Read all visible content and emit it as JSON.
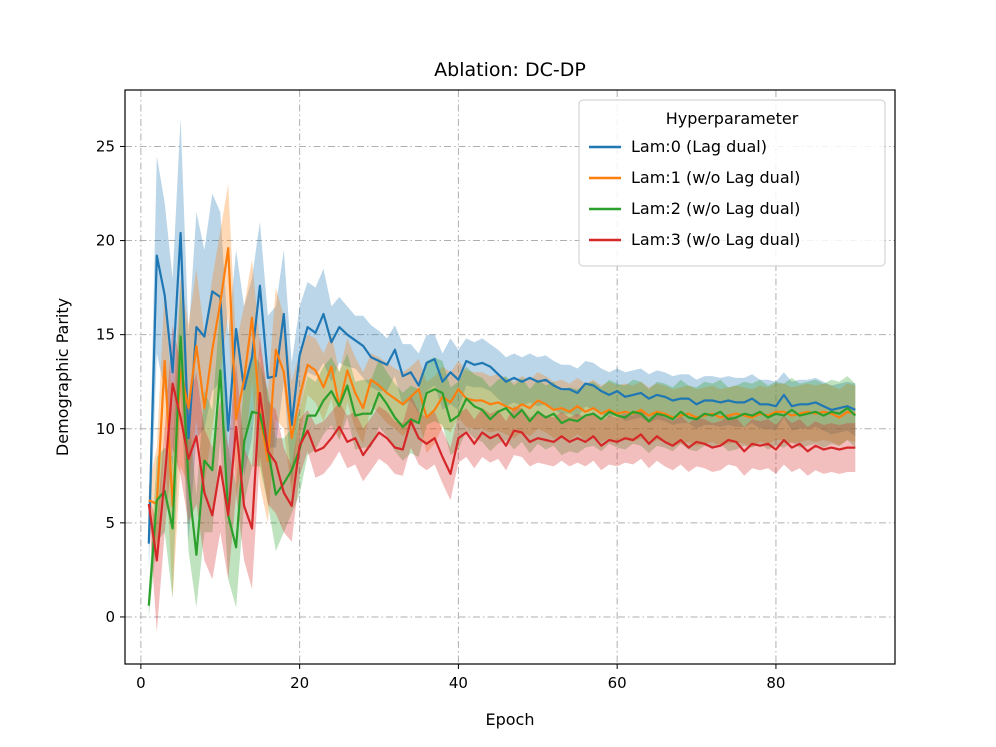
{
  "chart_data": {
    "type": "line",
    "title": "Ablation: DC-DP",
    "xlabel": "Epoch",
    "ylabel": "Demographic Parity",
    "xlim": [
      -2,
      95
    ],
    "ylim": [
      -2.5,
      28
    ],
    "xticks": [
      0,
      20,
      40,
      60,
      80
    ],
    "yticks": [
      0,
      5,
      10,
      15,
      20,
      25
    ],
    "grid": true,
    "legend": {
      "title": "Hyperparameter",
      "placement": "top-right",
      "entries": [
        "Lam:0 (Lag dual)",
        "Lam:1 (w/o Lag dual)",
        "Lam:2 (w/o Lag dual)",
        "Lam:3 (w/o Lag dual)"
      ]
    },
    "x": [
      1,
      2,
      3,
      4,
      5,
      6,
      7,
      8,
      9,
      10,
      11,
      12,
      13,
      14,
      15,
      16,
      17,
      18,
      19,
      20,
      21,
      22,
      23,
      24,
      25,
      26,
      27,
      28,
      29,
      30,
      31,
      32,
      33,
      34,
      35,
      36,
      37,
      38,
      39,
      40,
      41,
      42,
      43,
      44,
      45,
      46,
      47,
      48,
      49,
      50,
      51,
      52,
      53,
      54,
      55,
      56,
      57,
      58,
      59,
      60,
      61,
      62,
      63,
      64,
      65,
      66,
      67,
      68,
      69,
      70,
      71,
      72,
      73,
      74,
      75,
      76,
      77,
      78,
      79,
      80,
      81,
      82,
      83,
      84,
      85,
      86,
      87,
      88,
      89,
      90
    ],
    "series": [
      {
        "name": "Lam:0 (Lag dual)",
        "color": "#1f77b4",
        "values": [
          3.9,
          19.2,
          17.1,
          13.0,
          20.4,
          9.5,
          15.4,
          14.9,
          17.3,
          17.0,
          9.9,
          15.3,
          12.1,
          13.8,
          17.6,
          12.7,
          12.8,
          16.1,
          10.2,
          13.9,
          15.4,
          15.1,
          16.1,
          14.6,
          15.4,
          15.0,
          14.7,
          14.4,
          13.8,
          13.6,
          13.4,
          14.2,
          12.8,
          13.0,
          12.3,
          13.5,
          13.7,
          12.5,
          13.0,
          12.6,
          13.6,
          13.4,
          13.5,
          13.3,
          12.9,
          12.5,
          12.7,
          12.5,
          12.7,
          12.5,
          12.6,
          12.3,
          12.1,
          12.1,
          11.9,
          12.4,
          12.3,
          12.0,
          11.8,
          12.0,
          11.7,
          11.8,
          11.9,
          11.6,
          11.8,
          11.7,
          11.5,
          11.6,
          11.6,
          11.3,
          11.5,
          11.5,
          11.4,
          11.5,
          11.4,
          11.4,
          11.6,
          11.3,
          11.3,
          11.2,
          11.8,
          11.2,
          11.3,
          11.3,
          11.4,
          11.2,
          11.0,
          11.1,
          11.2,
          11.0
        ],
        "upper": [
          5.5,
          24.5,
          22.0,
          18.0,
          26.5,
          15.0,
          21.5,
          19.5,
          22.5,
          21.5,
          15.0,
          19.5,
          16.5,
          18.0,
          21.0,
          16.0,
          16.5,
          19.5,
          13.5,
          16.5,
          17.8,
          17.5,
          18.5,
          16.5,
          17.0,
          16.5,
          16.0,
          16.0,
          15.5,
          15.2,
          14.8,
          15.5,
          14.5,
          14.5,
          14.0,
          15.0,
          15.0,
          14.0,
          14.8,
          14.2,
          14.8,
          14.6,
          14.8,
          14.5,
          14.2,
          13.8,
          14.0,
          13.8,
          14.0,
          13.8,
          13.9,
          13.6,
          13.4,
          13.4,
          13.2,
          13.6,
          13.5,
          13.2,
          13.0,
          13.2,
          13.0,
          13.1,
          13.2,
          12.9,
          13.1,
          13.0,
          12.8,
          12.9,
          12.9,
          12.6,
          12.8,
          12.8,
          12.7,
          12.8,
          12.7,
          12.7,
          12.9,
          12.6,
          12.6,
          12.5,
          13.0,
          12.5,
          12.6,
          12.6,
          12.7,
          12.5,
          12.3,
          12.4,
          12.5,
          12.4
        ],
        "lower": [
          2.5,
          14.0,
          12.0,
          8.0,
          14.5,
          4.0,
          9.5,
          10.0,
          12.0,
          12.5,
          5.0,
          11.0,
          7.5,
          9.5,
          14.0,
          9.0,
          9.0,
          12.5,
          7.0,
          11.0,
          13.0,
          12.8,
          13.5,
          12.5,
          13.5,
          13.3,
          13.2,
          12.7,
          12.2,
          12.0,
          12.0,
          12.8,
          11.2,
          11.5,
          10.8,
          12.0,
          12.3,
          11.0,
          11.3,
          11.0,
          12.3,
          12.2,
          12.2,
          12.0,
          11.6,
          11.2,
          11.4,
          11.2,
          11.4,
          11.2,
          11.3,
          11.0,
          10.8,
          10.8,
          10.6,
          11.2,
          11.0,
          10.8,
          10.6,
          10.8,
          10.4,
          10.5,
          10.6,
          10.3,
          10.5,
          10.4,
          10.2,
          10.3,
          10.3,
          10.0,
          10.2,
          10.2,
          10.1,
          10.2,
          10.1,
          10.1,
          10.3,
          10.0,
          10.0,
          9.9,
          10.6,
          9.9,
          10.0,
          10.0,
          10.1,
          9.9,
          9.7,
          9.8,
          9.9,
          9.6
        ]
      },
      {
        "name": "Lam:1 (w/o Lag dual)",
        "color": "#ff7f0e",
        "values": [
          6.2,
          6.0,
          13.6,
          5.9,
          13.1,
          11.1,
          14.4,
          11.1,
          14.2,
          16.7,
          19.6,
          10.5,
          12.6,
          15.9,
          10.7,
          8.3,
          14.2,
          13.0,
          9.5,
          11.7,
          13.4,
          13.1,
          12.2,
          13.3,
          11.2,
          13.1,
          11.9,
          11.1,
          12.6,
          12.3,
          11.9,
          11.6,
          11.3,
          11.7,
          12.1,
          10.6,
          11.0,
          11.7,
          11.4,
          12.1,
          11.6,
          11.5,
          11.5,
          11.3,
          11.4,
          11.2,
          11.0,
          11.3,
          11.1,
          11.5,
          11.3,
          11.0,
          11.1,
          10.9,
          11.2,
          10.9,
          11.1,
          10.8,
          11.0,
          10.8,
          10.9,
          10.8,
          11.0,
          10.7,
          10.9,
          10.8,
          10.6,
          10.7,
          10.8,
          10.6,
          10.7,
          10.8,
          10.6,
          10.7,
          10.8,
          10.7,
          10.6,
          10.8,
          10.7,
          10.9,
          10.9,
          10.7,
          10.8,
          10.9,
          10.8,
          10.9,
          10.8,
          10.6,
          10.9,
          10.8
        ],
        "upper": [
          7.0,
          9.0,
          17.5,
          11.0,
          18.0,
          15.5,
          18.5,
          15.0,
          18.0,
          20.5,
          23.0,
          14.5,
          16.5,
          19.0,
          14.5,
          12.0,
          17.5,
          16.0,
          12.5,
          14.0,
          15.0,
          14.8,
          14.0,
          15.0,
          13.0,
          14.8,
          13.8,
          13.0,
          14.0,
          13.8,
          13.5,
          13.2,
          13.0,
          13.3,
          13.7,
          12.5,
          12.8,
          13.3,
          13.0,
          13.6,
          13.1,
          13.0,
          13.0,
          12.8,
          12.9,
          12.7,
          12.5,
          12.8,
          12.6,
          13.0,
          12.8,
          12.5,
          12.6,
          12.4,
          12.7,
          12.4,
          12.6,
          12.3,
          12.5,
          12.3,
          12.4,
          12.3,
          12.5,
          12.2,
          12.4,
          12.3,
          12.1,
          12.2,
          12.3,
          12.1,
          12.2,
          12.3,
          12.1,
          12.2,
          12.3,
          12.2,
          12.1,
          12.3,
          12.2,
          12.4,
          12.4,
          12.2,
          12.3,
          12.4,
          12.3,
          12.4,
          12.3,
          12.1,
          12.4,
          12.3
        ],
        "lower": [
          5.0,
          3.0,
          9.5,
          1.0,
          8.0,
          7.0,
          10.5,
          7.0,
          10.0,
          13.0,
          16.0,
          6.5,
          8.5,
          12.5,
          7.0,
          5.0,
          10.5,
          10.0,
          6.5,
          9.5,
          11.8,
          11.4,
          10.4,
          11.6,
          9.4,
          11.4,
          10.0,
          9.2,
          11.2,
          10.8,
          10.3,
          10.0,
          9.6,
          10.1,
          10.5,
          8.7,
          9.2,
          10.1,
          9.8,
          10.6,
          10.1,
          10.0,
          10.0,
          9.8,
          9.9,
          9.7,
          9.5,
          9.8,
          9.6,
          10.0,
          9.8,
          9.5,
          9.6,
          9.4,
          9.7,
          9.4,
          9.6,
          9.3,
          9.5,
          9.3,
          9.4,
          9.3,
          9.5,
          9.2,
          9.4,
          9.3,
          9.1,
          9.2,
          9.3,
          9.1,
          9.2,
          9.3,
          9.1,
          9.2,
          9.3,
          9.2,
          9.1,
          9.3,
          9.2,
          9.4,
          9.4,
          9.2,
          9.3,
          9.4,
          9.3,
          9.4,
          9.3,
          9.1,
          9.4,
          9.3
        ]
      },
      {
        "name": "Lam:2 (w/o Lag dual)",
        "color": "#2ca02c",
        "values": [
          0.6,
          6.2,
          6.7,
          4.7,
          14.9,
          7.2,
          3.3,
          8.3,
          7.8,
          13.1,
          5.4,
          3.7,
          9.3,
          10.9,
          10.8,
          8.9,
          6.5,
          7.1,
          7.8,
          8.9,
          10.7,
          10.7,
          11.5,
          12.0,
          11.2,
          12.3,
          10.7,
          10.8,
          10.8,
          11.9,
          11.3,
          10.6,
          10.1,
          10.5,
          10.3,
          11.9,
          12.1,
          11.9,
          10.4,
          10.7,
          11.6,
          11.2,
          11.0,
          10.5,
          10.9,
          11.1,
          10.6,
          11.0,
          10.4,
          10.9,
          10.6,
          10.8,
          10.3,
          10.5,
          10.4,
          10.7,
          10.8,
          10.5,
          10.9,
          10.7,
          10.6,
          10.9,
          10.8,
          10.4,
          10.8,
          10.7,
          10.5,
          10.9,
          10.6,
          10.5,
          10.8,
          10.7,
          10.9,
          10.5,
          10.6,
          10.8,
          10.7,
          10.9,
          10.6,
          10.8,
          10.7,
          11.0,
          10.7,
          10.8,
          10.9,
          10.7,
          10.9,
          10.8,
          11.1,
          10.7
        ],
        "upper": [
          1.5,
          8.5,
          9.0,
          8.5,
          17.5,
          11.0,
          6.5,
          12.0,
          11.0,
          16.5,
          9.0,
          7.0,
          12.5,
          14.0,
          13.5,
          12.0,
          9.5,
          9.5,
          10.0,
          11.0,
          12.8,
          12.5,
          13.3,
          13.8,
          13.0,
          14.0,
          12.5,
          12.6,
          12.6,
          13.7,
          13.0,
          12.4,
          11.9,
          12.3,
          12.1,
          13.6,
          13.8,
          13.6,
          12.2,
          12.5,
          13.3,
          12.9,
          12.7,
          12.2,
          12.6,
          12.8,
          12.3,
          12.7,
          12.1,
          12.6,
          12.3,
          12.5,
          12.0,
          12.2,
          12.1,
          12.4,
          12.5,
          12.2,
          12.6,
          12.4,
          12.3,
          12.6,
          12.5,
          12.1,
          12.5,
          12.4,
          12.2,
          12.6,
          12.3,
          12.2,
          12.5,
          12.4,
          12.6,
          12.2,
          12.3,
          12.5,
          12.4,
          12.6,
          12.3,
          12.5,
          12.4,
          12.7,
          12.4,
          12.5,
          12.6,
          12.4,
          12.6,
          12.5,
          12.8,
          12.4
        ],
        "lower": [
          0.0,
          4.0,
          4.5,
          1.0,
          12.0,
          3.5,
          0.5,
          4.5,
          4.5,
          9.5,
          2.0,
          0.5,
          6.0,
          8.0,
          8.0,
          6.0,
          3.5,
          4.5,
          5.5,
          6.5,
          8.6,
          8.9,
          9.7,
          10.2,
          9.4,
          10.6,
          8.9,
          9.0,
          9.0,
          10.1,
          9.6,
          8.8,
          8.3,
          8.7,
          8.5,
          10.2,
          10.4,
          10.2,
          8.6,
          8.9,
          9.9,
          9.5,
          9.3,
          8.8,
          9.2,
          9.4,
          8.9,
          9.3,
          8.7,
          9.2,
          8.9,
          9.1,
          8.6,
          8.8,
          8.7,
          9.0,
          9.1,
          8.8,
          9.2,
          9.0,
          8.9,
          9.2,
          9.1,
          8.7,
          9.1,
          9.0,
          8.8,
          9.2,
          8.9,
          8.8,
          9.1,
          9.0,
          9.2,
          8.8,
          8.9,
          9.1,
          9.0,
          9.2,
          8.9,
          9.1,
          9.0,
          9.3,
          9.0,
          9.1,
          9.2,
          9.0,
          9.2,
          9.1,
          9.4,
          9.0
        ]
      },
      {
        "name": "Lam:3 (w/o Lag dual)",
        "color": "#d62728",
        "values": [
          6.0,
          3.0,
          7.4,
          12.4,
          10.6,
          8.4,
          9.6,
          6.6,
          5.4,
          8.0,
          5.4,
          10.1,
          5.9,
          4.7,
          11.9,
          8.8,
          8.2,
          6.6,
          5.9,
          9.1,
          9.9,
          8.8,
          9.0,
          9.5,
          10.1,
          9.3,
          9.5,
          8.6,
          9.2,
          9.8,
          9.5,
          9.0,
          8.9,
          10.4,
          9.5,
          9.2,
          9.5,
          8.5,
          7.6,
          9.5,
          9.8,
          9.2,
          9.8,
          9.5,
          9.7,
          9.1,
          9.9,
          9.8,
          9.3,
          9.5,
          9.4,
          9.3,
          9.6,
          9.3,
          9.5,
          9.3,
          9.6,
          9.1,
          9.4,
          9.3,
          9.5,
          9.4,
          9.7,
          9.2,
          9.6,
          9.3,
          9.1,
          9.4,
          9.0,
          9.3,
          9.2,
          9.0,
          9.1,
          9.4,
          9.3,
          8.8,
          9.2,
          9.1,
          9.2,
          8.9,
          9.4,
          9.0,
          9.2,
          8.8,
          9.1,
          8.9,
          9.0,
          8.9,
          9.0,
          9.0
        ],
        "upper": [
          6.5,
          5.0,
          10.0,
          15.5,
          13.5,
          11.5,
          13.0,
          10.0,
          9.0,
          11.5,
          9.0,
          13.5,
          9.0,
          8.0,
          15.0,
          11.5,
          11.0,
          9.0,
          8.0,
          10.5,
          11.0,
          10.2,
          10.4,
          10.9,
          11.4,
          10.7,
          10.9,
          10.0,
          10.6,
          11.2,
          10.9,
          10.4,
          10.3,
          11.8,
          10.9,
          10.6,
          10.9,
          9.9,
          9.0,
          10.8,
          11.1,
          10.5,
          11.1,
          10.8,
          11.0,
          10.4,
          11.2,
          11.1,
          10.6,
          10.8,
          10.7,
          10.6,
          10.9,
          10.6,
          10.8,
          10.6,
          10.9,
          10.4,
          10.7,
          10.6,
          10.8,
          10.7,
          11.0,
          10.5,
          10.9,
          10.6,
          10.4,
          10.7,
          10.3,
          10.6,
          10.5,
          10.3,
          10.4,
          10.7,
          10.6,
          10.1,
          10.5,
          10.4,
          10.5,
          10.2,
          10.7,
          10.3,
          10.5,
          10.1,
          10.4,
          10.2,
          10.3,
          10.2,
          10.3,
          10.3
        ],
        "lower": [
          5.5,
          -0.8,
          4.5,
          9.0,
          7.5,
          5.0,
          6.0,
          3.0,
          2.0,
          4.5,
          2.0,
          6.5,
          3.0,
          1.5,
          8.5,
          6.0,
          5.5,
          4.5,
          4.0,
          7.5,
          8.8,
          7.4,
          7.6,
          8.1,
          8.8,
          7.9,
          8.1,
          7.2,
          7.8,
          8.4,
          8.1,
          7.6,
          7.5,
          9.0,
          8.1,
          7.8,
          8.1,
          7.1,
          6.2,
          8.2,
          8.5,
          7.9,
          8.5,
          8.2,
          8.4,
          7.8,
          8.6,
          8.5,
          8.0,
          8.2,
          8.1,
          8.0,
          8.3,
          8.0,
          8.2,
          8.0,
          8.3,
          7.8,
          8.1,
          8.0,
          8.2,
          8.1,
          8.4,
          7.9,
          8.3,
          8.0,
          7.8,
          8.1,
          7.7,
          8.0,
          7.9,
          7.7,
          7.8,
          8.1,
          8.0,
          7.5,
          7.9,
          7.8,
          7.9,
          7.6,
          8.1,
          7.7,
          7.9,
          7.5,
          7.8,
          7.6,
          7.7,
          7.6,
          7.7,
          7.7
        ]
      }
    ]
  }
}
